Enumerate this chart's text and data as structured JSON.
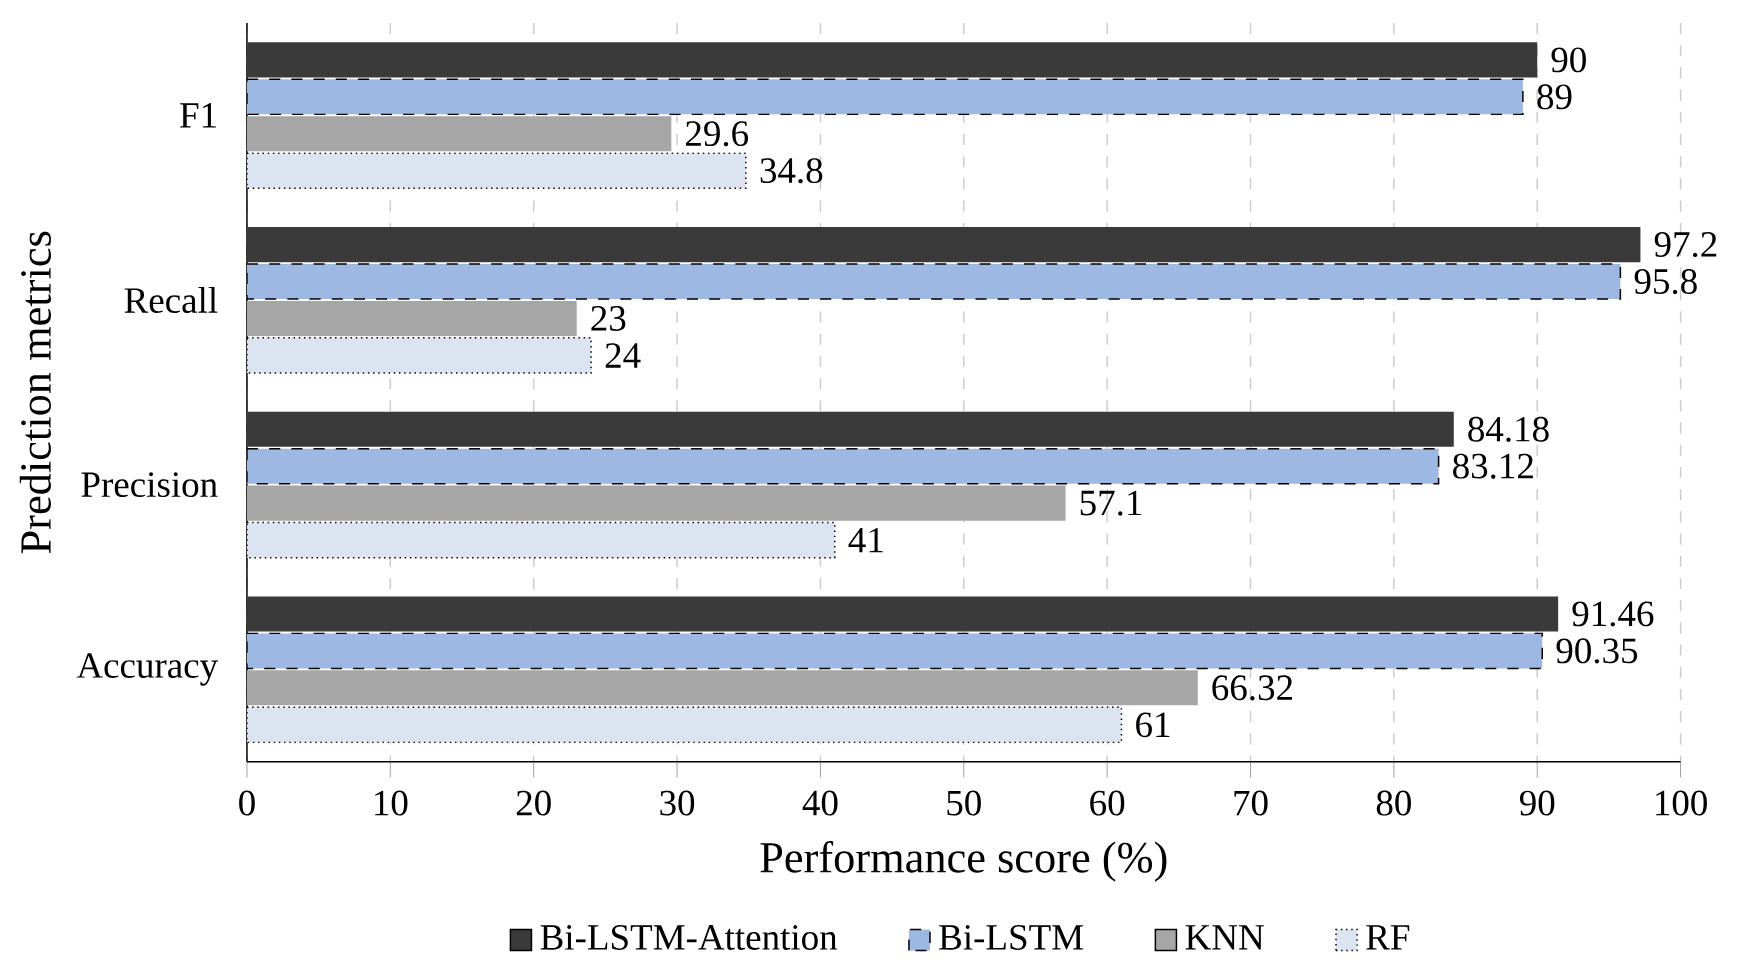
{
  "chart_data": {
    "type": "bar",
    "orientation": "horizontal",
    "xlabel": "Performance score (%)",
    "ylabel": "Prediction metrics",
    "categories": [
      "F1",
      "Recall",
      "Precision",
      "Accuracy"
    ],
    "series": [
      {
        "name": "Bi-LSTM-Attention",
        "color": "#3a3a3a",
        "values": [
          90,
          97.2,
          84.18,
          91.46
        ]
      },
      {
        "name": "Bi-LSTM",
        "color": "#9db8e2",
        "values": [
          89,
          95.8,
          83.12,
          90.35
        ]
      },
      {
        "name": "KNN",
        "color": "#a6a6a6",
        "values": [
          29.6,
          23,
          57.1,
          66.32
        ]
      },
      {
        "name": "RF",
        "color": "#dce4f2",
        "values": [
          34.8,
          24,
          41,
          61
        ]
      }
    ],
    "xlim": [
      0,
      100
    ],
    "xticks": [
      0,
      10,
      20,
      30,
      40,
      50,
      60,
      70,
      80,
      90,
      100
    ],
    "grid": "x",
    "legend": "bottom",
    "data_labels": true
  }
}
